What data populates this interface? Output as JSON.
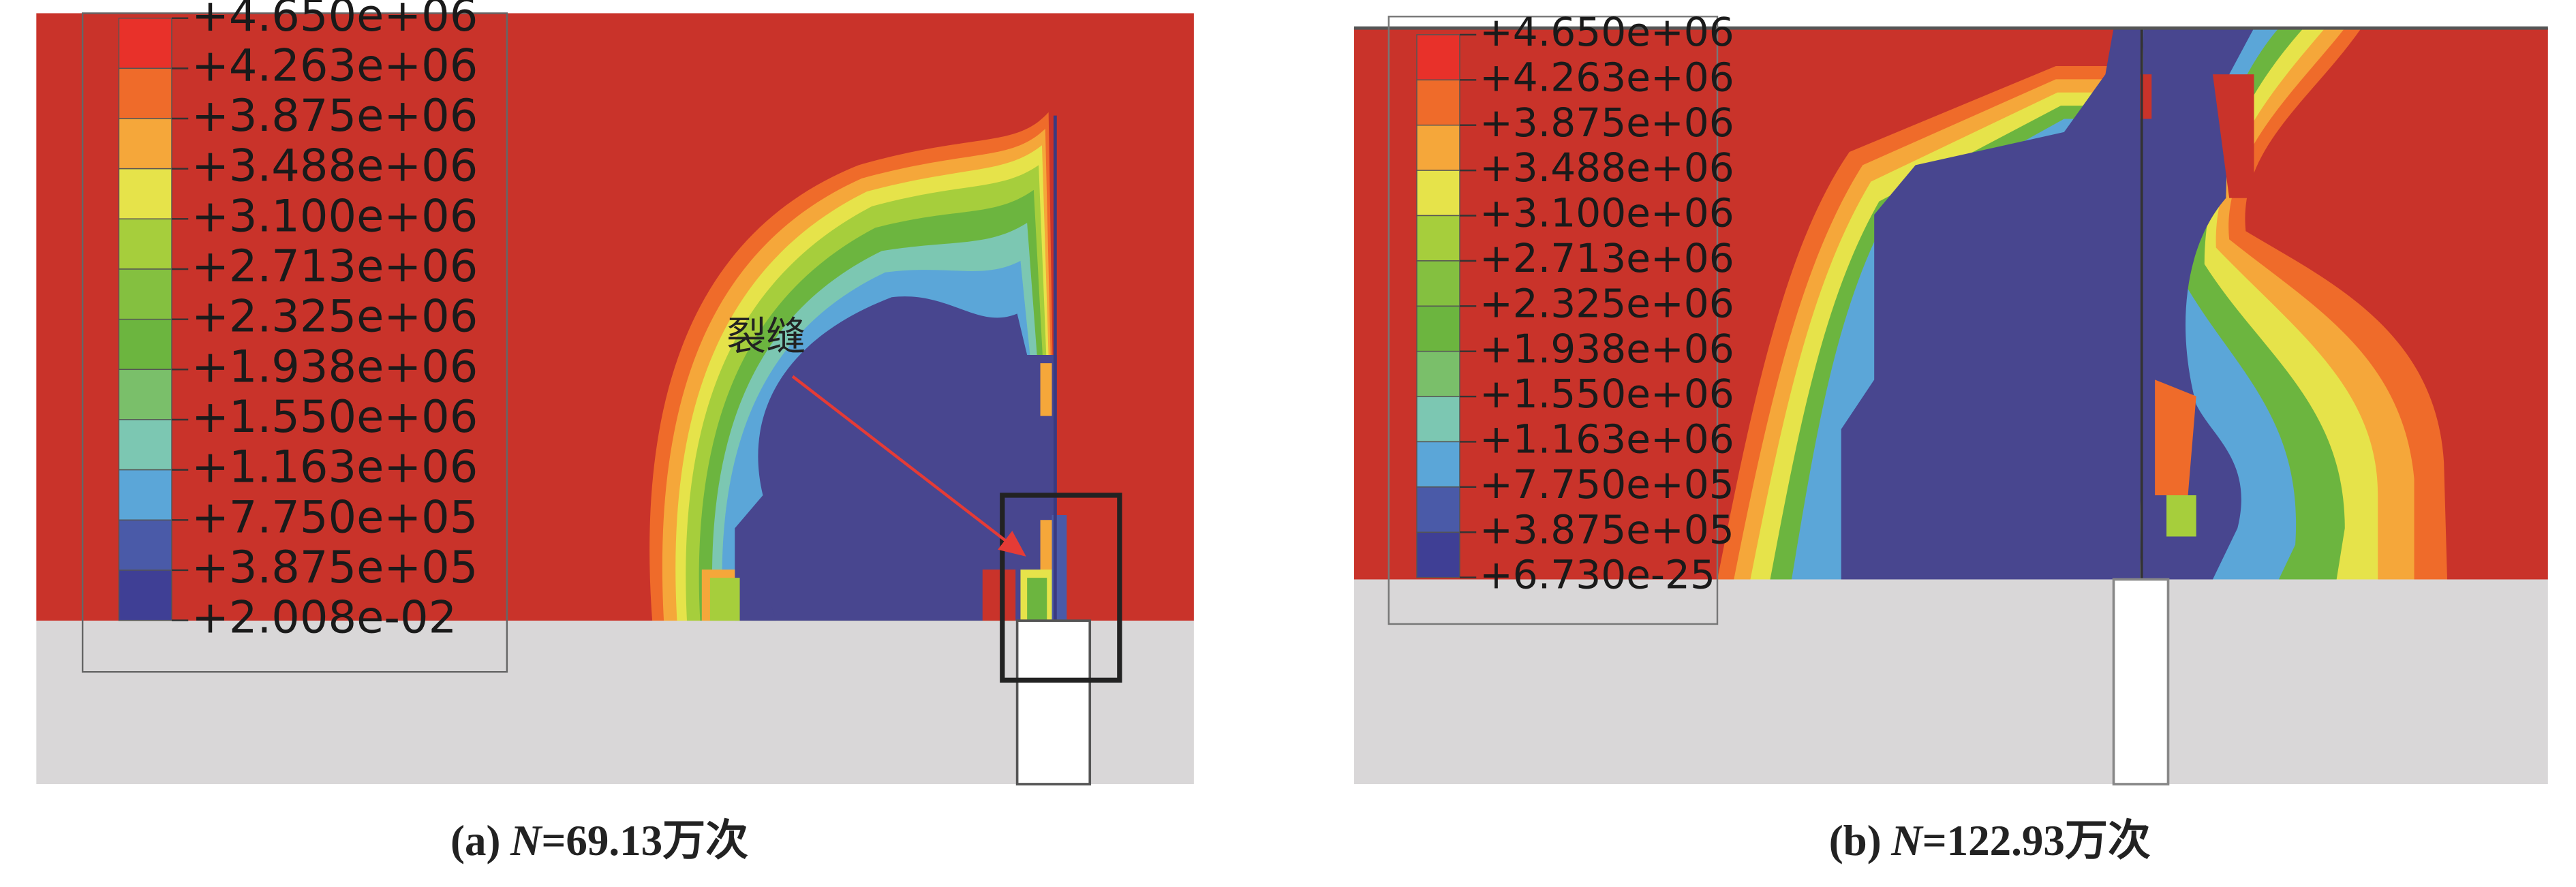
{
  "panels": [
    {
      "legend_labels": [
        "+4.650e+06",
        "+4.263e+06",
        "+3.875e+06",
        "+3.488e+06",
        "+3.100e+06",
        "+2.713e+06",
        "+2.325e+06",
        "+1.938e+06",
        "+1.550e+06",
        "+1.163e+06",
        "+7.750e+05",
        "+3.875e+05",
        "+2.008e-02"
      ],
      "annotation": "裂缝",
      "caption": {
        "label": "(a)",
        "variable": "N",
        "value": "=69.13万次"
      }
    },
    {
      "legend_labels": [
        "+4.650e+06",
        "+4.263e+06",
        "+3.875e+06",
        "+3.488e+06",
        "+3.100e+06",
        "+2.713e+06",
        "+2.325e+06",
        "+1.938e+06",
        "+1.550e+06",
        "+1.163e+06",
        "+7.750e+05",
        "+3.875e+05",
        "+6.730e-25"
      ],
      "caption": {
        "label": "(b)",
        "variable": "N",
        "value": "=122.93万次"
      }
    }
  ]
}
